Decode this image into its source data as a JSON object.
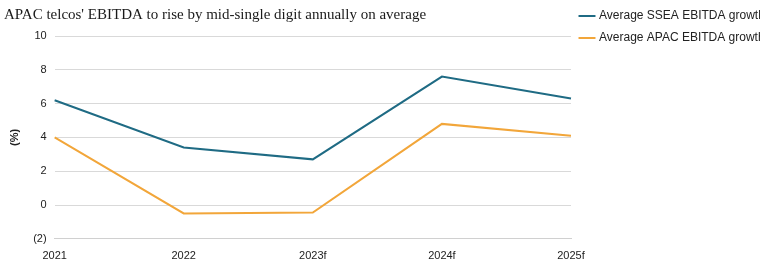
{
  "chart_data": {
    "type": "line",
    "title": "APAC telcos' EBITDA to rise by mid-single digit annually on average",
    "y_label": "(%)",
    "categories": [
      "2021",
      "2022",
      "2023f",
      "2024f",
      "2025f"
    ],
    "series": [
      {
        "name": "Average SSEA EBITDA growth",
        "color": "#1f6b84",
        "values": [
          6.2,
          3.4,
          2.7,
          7.6,
          6.3
        ]
      },
      {
        "name": "Average APAC EBITDA growth",
        "color": "#f2a63a",
        "values": [
          4.0,
          -0.5,
          -0.45,
          4.8,
          4.1
        ]
      }
    ],
    "ylim": [
      -2,
      10
    ],
    "yticks": [
      {
        "value": -2,
        "label": "(2)"
      },
      0,
      2,
      4,
      6,
      8,
      10
    ],
    "grid": true,
    "legend": "upper right"
  }
}
